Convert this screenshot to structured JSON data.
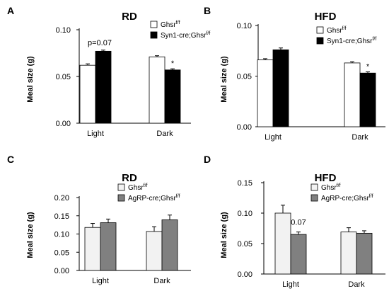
{
  "chart_data": [
    {
      "type": "bar",
      "panel": "A",
      "title": "RD",
      "ylabel": "Meal size (g)",
      "xlabel": "",
      "ylim": [
        0,
        0.1
      ],
      "yticks": [
        "0.00",
        "0.05",
        "0.10"
      ],
      "categories": [
        "Light",
        "Dark"
      ],
      "legend_position": "top-right",
      "series": [
        {
          "name": "Ghsr",
          "name_sup": "f/f",
          "color": "#ffffff",
          "values": [
            0.062,
            0.071
          ],
          "errors": [
            0.0015,
            0.0012
          ]
        },
        {
          "name": "Syn1-cre;Ghsr",
          "name_sup": "f/f",
          "color": "#000000",
          "values": [
            0.077,
            0.057
          ],
          "errors": [
            0.0012,
            0.0012
          ]
        }
      ],
      "annotations": [
        {
          "text": "p=0.07",
          "category": 0
        },
        {
          "text": "*",
          "category": 1
        }
      ]
    },
    {
      "type": "bar",
      "panel": "B",
      "title": "HFD",
      "ylabel": "Meal size (g)",
      "xlabel": "",
      "ylim": [
        0,
        0.1
      ],
      "yticks": [
        "0.00",
        "0.05",
        "0.10"
      ],
      "categories": [
        "Light",
        "Dark"
      ],
      "legend_position": "top-right",
      "series": [
        {
          "name": "Ghsr",
          "name_sup": "f/f",
          "color": "#ffffff",
          "values": [
            0.066,
            0.063
          ],
          "errors": [
            0.0012,
            0.0012
          ]
        },
        {
          "name": "Syn1-cre;Ghsr",
          "name_sup": "f/f",
          "color": "#000000",
          "values": [
            0.076,
            0.053
          ],
          "errors": [
            0.0018,
            0.0012
          ]
        }
      ],
      "annotations": [
        {
          "text": "*",
          "category": 1
        }
      ]
    },
    {
      "type": "bar",
      "panel": "C",
      "title": "RD",
      "ylabel": "Meal size (g)",
      "xlabel": "",
      "ylim": [
        0,
        0.2
      ],
      "yticks": [
        "0.00",
        "0.05",
        "0.10",
        "0.15",
        "0.20"
      ],
      "categories": [
        "Light",
        "Dark"
      ],
      "legend_position": "top-right",
      "series": [
        {
          "name": "Ghsr",
          "name_sup": "f/f",
          "color": "#f2f2f2",
          "values": [
            0.118,
            0.107
          ],
          "errors": [
            0.011,
            0.013
          ]
        },
        {
          "name": "AgRP-cre;Ghsr",
          "name_sup": "f/f",
          "color": "#808080",
          "values": [
            0.131,
            0.139
          ],
          "errors": [
            0.01,
            0.013
          ]
        }
      ],
      "annotations": []
    },
    {
      "type": "bar",
      "panel": "D",
      "title": "HFD",
      "ylabel": "Meal size (g)",
      "xlabel": "",
      "ylim": [
        0,
        0.15
      ],
      "yticks": [
        "0.00",
        "0.05",
        "0.10",
        "0.15"
      ],
      "categories": [
        "Light",
        "Dark"
      ],
      "legend_position": "top-right",
      "series": [
        {
          "name": "Ghsr",
          "name_sup": "f/f",
          "color": "#f2f2f2",
          "values": [
            0.1,
            0.069
          ],
          "errors": [
            0.013,
            0.007
          ]
        },
        {
          "name": "AgRP-cre;Ghsr",
          "name_sup": "f/f",
          "color": "#808080",
          "values": [
            0.065,
            0.067
          ],
          "errors": [
            0.004,
            0.004
          ]
        }
      ],
      "annotations": [
        {
          "text": "0.07",
          "category": 0
        }
      ]
    }
  ]
}
